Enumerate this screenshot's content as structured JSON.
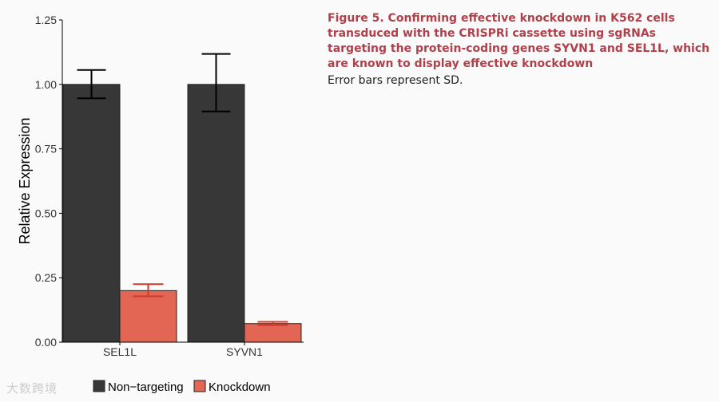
{
  "chart_data": {
    "type": "bar",
    "categories": [
      "SEL1L",
      "SYVN1"
    ],
    "series": [
      {
        "name": "Non−targeting",
        "color": "#373737",
        "values": [
          1.0,
          1.0
        ],
        "error": [
          [
            0.946,
            1.056
          ],
          [
            0.895,
            1.118
          ]
        ]
      },
      {
        "name": "Knockdown",
        "color": "#e36654",
        "values": [
          0.2,
          0.072
        ],
        "error": [
          [
            0.178,
            0.225
          ],
          [
            0.066,
            0.079
          ]
        ]
      }
    ],
    "ylabel": "Relative Expression",
    "xlabel": "",
    "ylim": [
      0,
      1.25
    ],
    "yticks": [
      "0.00",
      "0.25",
      "0.50",
      "0.75",
      "1.00",
      "1.25"
    ],
    "grid": false,
    "legend_position": "bottom",
    "error_color_knockdown": "#d03a2a"
  },
  "caption": {
    "title": "Figure 5.  Confirming effective knockdown in K562 cells transduced with the CRISPRi cassette using sgRNAs targeting the protein-coding genes SYVN1 and SEL1L, which are known to display effective knockdown",
    "note": "Error bars represent SD."
  },
  "watermark": "大数跨境"
}
